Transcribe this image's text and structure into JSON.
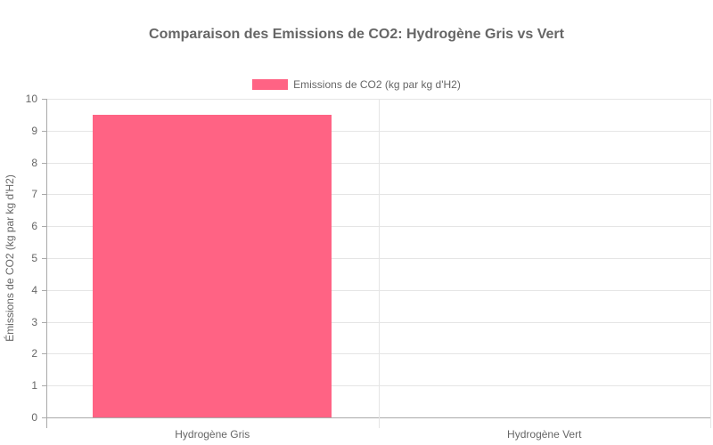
{
  "chart_data": {
    "type": "bar",
    "title": "Comparaison des Emissions de CO2: Hydrogène Gris vs Vert",
    "categories": [
      "Hydrogène Gris",
      "Hydrogène Vert"
    ],
    "series": [
      {
        "name": "Emissions de CO2 (kg par kg d'H2)",
        "values": [
          9.5,
          0
        ],
        "color": "#ff6384"
      }
    ],
    "xlabel": "",
    "ylabel": "Émissions de CO2 (kg par kg d'H2)",
    "ylim": [
      0,
      10
    ],
    "yticks": [
      "0",
      "1",
      "2",
      "3",
      "4",
      "5",
      "6",
      "7",
      "8",
      "9",
      "10"
    ],
    "grid": true,
    "legend_position": "top"
  }
}
